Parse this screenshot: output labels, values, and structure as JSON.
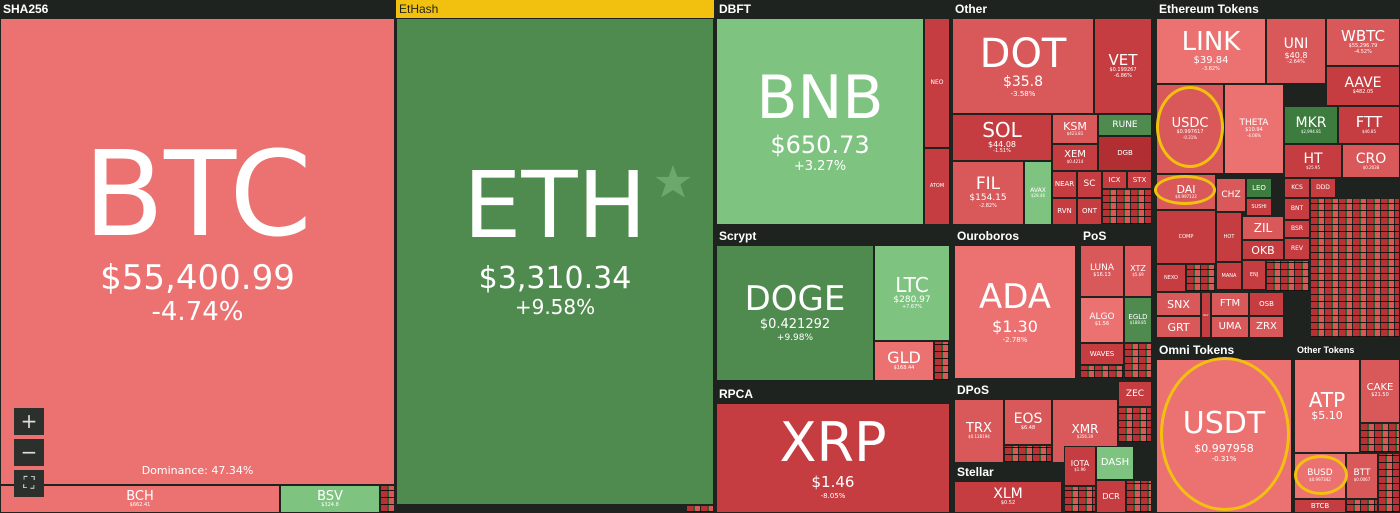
{
  "groups": {
    "sha256": "SHA256",
    "ethash": "EtHash",
    "dbft": "DBFT",
    "other": "Other",
    "eth_tokens": "Ethereum Tokens",
    "scrypt": "Scrypt",
    "ouroboros": "Ouroboros",
    "pos": "PoS",
    "rpca": "RPCA",
    "dpos": "DPoS",
    "stellar": "Stellar",
    "omni": "Omni Tokens",
    "other_tokens": "Other Tokens"
  },
  "btc": {
    "symbol": "BTC",
    "price": "$55,400.99",
    "change": "-4.74%",
    "dominance": "Dominance: 47.34%"
  },
  "bch": {
    "symbol": "BCH",
    "price": "$662.41"
  },
  "bsv": {
    "symbol": "BSV",
    "price": "$324.8"
  },
  "eth": {
    "symbol": "ETH",
    "price": "$3,310.34",
    "change": "+9.58%"
  },
  "bnb": {
    "symbol": "BNB",
    "price": "$650.73",
    "change": "+3.27%"
  },
  "neo": {
    "symbol": "NEO"
  },
  "atom": {
    "symbol": "ATOM"
  },
  "dot": {
    "symbol": "DOT",
    "price": "$35.8",
    "change": "-3.58%"
  },
  "vet": {
    "symbol": "VET",
    "price": "$0.199267",
    "change": "-6.86%"
  },
  "sol": {
    "symbol": "SOL",
    "price": "$44.08",
    "change": "-1.51%"
  },
  "ksm": {
    "symbol": "KSM",
    "price": "$423.81"
  },
  "rune": {
    "symbol": "RUNE"
  },
  "xem": {
    "symbol": "XEM",
    "price": "$0.4214"
  },
  "dgb": {
    "symbol": "DGB"
  },
  "fil": {
    "symbol": "FIL",
    "price": "$154.15",
    "change": "-2.82%"
  },
  "avax": {
    "symbol": "AVAX",
    "price": "$28.46"
  },
  "near": {
    "symbol": "NEAR"
  },
  "sc": {
    "symbol": "SC"
  },
  "icx": {
    "symbol": "ICX"
  },
  "stx": {
    "symbol": "STX"
  },
  "rvn": {
    "symbol": "RVN"
  },
  "ont": {
    "symbol": "ONT"
  },
  "link": {
    "symbol": "LINK",
    "price": "$39.84",
    "change": "-3.82%"
  },
  "uni": {
    "symbol": "UNI",
    "price": "$40.8",
    "change": "-2.64%"
  },
  "wbtc": {
    "symbol": "WBTC",
    "price": "$55,296.79",
    "change": "-4.52%"
  },
  "aave": {
    "symbol": "AAVE",
    "price": "$482.05",
    "change": "-6.46%"
  },
  "usdc": {
    "symbol": "USDC",
    "price": "$0.997617",
    "change": "-0.31%"
  },
  "theta": {
    "symbol": "THETA",
    "price": "$10.94",
    "change": "-4.06%"
  },
  "mkr": {
    "symbol": "MKR",
    "price": "$2,994.81"
  },
  "ftt": {
    "symbol": "FTT",
    "price": "$46.85"
  },
  "ht": {
    "symbol": "HT",
    "price": "$25.95"
  },
  "cro": {
    "symbol": "CRO",
    "price": "$0.2038"
  },
  "dai": {
    "symbol": "DAI",
    "price": "$0.997122"
  },
  "chz": {
    "symbol": "CHZ"
  },
  "leo": {
    "symbol": "LEO"
  },
  "kcs": {
    "symbol": "KCS"
  },
  "ddd": {
    "symbol": "DDD"
  },
  "bnt": {
    "symbol": "BNT"
  },
  "snx2": {
    "symbol": "SUSHI"
  },
  "comp": {
    "symbol": "COMP"
  },
  "hot": {
    "symbol": "HOT"
  },
  "zil": {
    "symbol": "ZIL"
  },
  "bsr": {
    "symbol": "BSR"
  },
  "okb": {
    "symbol": "OKB"
  },
  "rev": {
    "symbol": "REV"
  },
  "nexo": {
    "symbol": "NEXO"
  },
  "mana": {
    "symbol": "MANA"
  },
  "enj": {
    "symbol": "ENJ"
  },
  "snx": {
    "symbol": "SNX"
  },
  "grt": {
    "symbol": "GRT"
  },
  "ftm": {
    "symbol": "FTM"
  },
  "osb": {
    "symbol": "OSB"
  },
  "uma": {
    "symbol": "UMA"
  },
  "zrx": {
    "symbol": "ZRX"
  },
  "rly": {
    "symbol": "RLY"
  },
  "doge": {
    "symbol": "DOGE",
    "price": "$0.421292",
    "change": "+9.98%"
  },
  "ltc": {
    "symbol": "LTC",
    "price": "$280.97",
    "change": "+7.67%"
  },
  "gld": {
    "symbol": "GLD",
    "price": "$168.44"
  },
  "ada": {
    "symbol": "ADA",
    "price": "$1.30",
    "change": "-2.78%"
  },
  "luna": {
    "symbol": "LUNA",
    "price": "$16.13"
  },
  "xtz": {
    "symbol": "XTZ",
    "price": "$5.69"
  },
  "algo": {
    "symbol": "ALGO",
    "price": "$1.56"
  },
  "egld": {
    "symbol": "EGLD",
    "price": "$188.85"
  },
  "waves": {
    "symbol": "WAVES"
  },
  "xrp": {
    "symbol": "XRP",
    "price": "$1.46",
    "change": "-8.05%"
  },
  "trx": {
    "symbol": "TRX",
    "price": "$0.128194"
  },
  "eos": {
    "symbol": "EOS",
    "price": "$6.48"
  },
  "xmr": {
    "symbol": "XMR",
    "price": "$356.39"
  },
  "zec": {
    "symbol": "ZEC"
  },
  "iota": {
    "symbol": "IOTA",
    "price": "$1.96"
  },
  "dash": {
    "symbol": "DASH"
  },
  "dcr": {
    "symbol": "DCR"
  },
  "xlm": {
    "symbol": "XLM",
    "price": "$0.52"
  },
  "usdt": {
    "symbol": "USDT",
    "price": "$0.997958",
    "change": "-0.31%"
  },
  "atp": {
    "symbol": "ATP",
    "price": "$5.10"
  },
  "cake": {
    "symbol": "CAKE",
    "price": "$21.50"
  },
  "busd": {
    "symbol": "BUSD",
    "price": "$0.997342"
  },
  "btt": {
    "symbol": "BTT",
    "price": "$0.0067"
  },
  "btcb": {
    "symbol": "BTCB"
  },
  "controls": {
    "zoom_in": "+",
    "zoom_out": "−",
    "fullscreen": "⛶"
  },
  "colors": {
    "loss": "#ec7272",
    "gain": "#7fc380",
    "highlight": "#f2c10f",
    "star": "#6aa86b"
  }
}
